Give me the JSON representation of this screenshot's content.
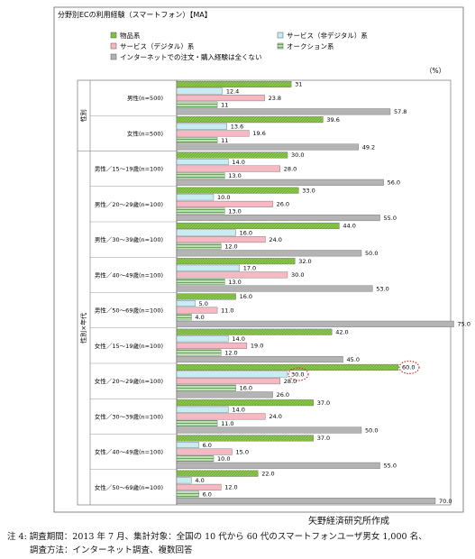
{
  "chart_data": {
    "type": "bar",
    "title": "分野別ECの利用経験（スマートフォン）【MA】",
    "unit": "（%）",
    "series": [
      {
        "name": "物品系",
        "color": "#8cc84b",
        "pattern": "diag"
      },
      {
        "name": "サービス（非デジタル）系",
        "color": "#c9ecf4",
        "pattern": "none"
      },
      {
        "name": "サービス（デジタル）系",
        "color": "#f6b9c3",
        "pattern": "none"
      },
      {
        "name": "オークション系",
        "color": "#bfe0b0",
        "pattern": "hgrid"
      },
      {
        "name": "インターネットでの注文・購入経験は全くない",
        "color": "#b4b4b4",
        "pattern": "none"
      }
    ],
    "groups": [
      {
        "label": "性別",
        "from": 0,
        "to": 1
      },
      {
        "label": "性別×年代",
        "from": 2,
        "to": 11
      }
    ],
    "categories": [
      {
        "label": "男性(n=500)",
        "values": [
          31,
          12.4,
          23.8,
          11,
          57.8
        ],
        "labels": [
          "31",
          "12.4",
          "23.8",
          "11",
          "57.8"
        ]
      },
      {
        "label": "女性(n=500)",
        "values": [
          39.6,
          13.6,
          19.6,
          11,
          49.2
        ],
        "labels": [
          "39.6",
          "13.6",
          "19.6",
          "11",
          "49.2"
        ]
      },
      {
        "label": "男性／15～19歳(n=100)",
        "values": [
          30,
          14,
          28,
          13,
          56
        ],
        "labels": [
          "30.0",
          "14.0",
          "28.0",
          "13.0",
          "56.0"
        ]
      },
      {
        "label": "男性／20～29歳(n=100)",
        "values": [
          33,
          10,
          26,
          13,
          55
        ],
        "labels": [
          "33.0",
          "10.0",
          "26.0",
          "13.0",
          "55.0"
        ]
      },
      {
        "label": "男性／30～39歳(n=100)",
        "values": [
          44,
          16,
          24,
          12,
          50
        ],
        "labels": [
          "44.0",
          "16.0",
          "24.0",
          "12.0",
          "50.0"
        ]
      },
      {
        "label": "男性／40～49歳(n=100)",
        "values": [
          32,
          17,
          30,
          13,
          53
        ],
        "labels": [
          "32.0",
          "17.0",
          "30.0",
          "13.0",
          "53.0"
        ]
      },
      {
        "label": "男性／50～69歳(n=100)",
        "values": [
          16,
          5,
          11,
          4,
          75
        ],
        "labels": [
          "16.0",
          "5.0",
          "11.0",
          "4.0",
          "75.0"
        ]
      },
      {
        "label": "女性／15～19歳(n=100)",
        "values": [
          42,
          14,
          19,
          12,
          45
        ],
        "labels": [
          "42.0",
          "14.0",
          "19.0",
          "12.0",
          "45.0"
        ]
      },
      {
        "label": "女性／20～29歳(n=100)",
        "values": [
          60,
          30,
          28,
          16,
          26
        ],
        "labels": [
          "60.0",
          "30.0",
          "28.0",
          "16.0",
          "26.0"
        ],
        "highlight": [
          0,
          1
        ]
      },
      {
        "label": "女性／30～39歳(n=100)",
        "values": [
          37,
          14,
          24,
          11,
          50
        ],
        "labels": [
          "37.0",
          "14.0",
          "24.0",
          "11.0",
          "50.0"
        ]
      },
      {
        "label": "女性／40～49歳(n=100)",
        "values": [
          37,
          6,
          15,
          10,
          55
        ],
        "labels": [
          "37.0",
          "6.0",
          "15.0",
          "10.0",
          "55.0"
        ]
      },
      {
        "label": "女性／50～69歳(n=100)",
        "values": [
          22,
          4,
          12,
          6,
          70
        ],
        "labels": [
          "22.0",
          "4.0",
          "12.0",
          "6.0",
          "70.0"
        ]
      }
    ],
    "xlim": [
      0,
      80
    ],
    "grid": false,
    "legend_position": "top"
  },
  "footer": {
    "source": "矢野経済研究所作成",
    "note_line1": "注 4:  調査期間：2013 年 7 月、集計対象：全国の 10 代から 60 代のスマートフォンユーザ男女 1,000 名、",
    "note_line2": "調査方法：インターネット調査、複数回答"
  }
}
